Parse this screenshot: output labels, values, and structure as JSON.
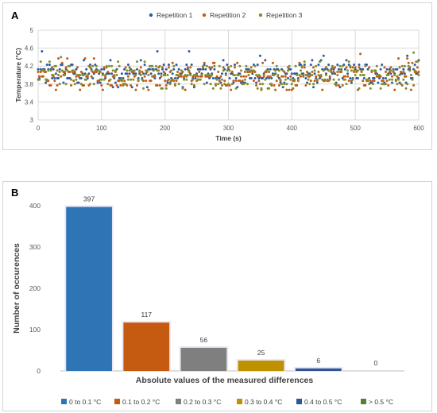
{
  "chart_data": [
    {
      "panel_label": "A",
      "type": "scatter",
      "xlabel": "Time (s)",
      "ylabel": "Temperature (°C)",
      "xlim": [
        0,
        600
      ],
      "ylim": [
        3,
        5
      ],
      "xticks": [
        "0",
        "100",
        "200",
        "300",
        "400",
        "500",
        "600"
      ],
      "yticks": [
        "3",
        "3.4",
        "3.8",
        "4.2",
        "4.6",
        "5"
      ],
      "grid": true,
      "legend_position": "top",
      "series": [
        {
          "name": "Repetition 1",
          "color": "#2e5c9e",
          "x_step": 2,
          "levels": [
            3.73,
            3.83,
            3.93,
            4.03,
            4.13,
            4.23,
            4.33,
            4.43,
            4.53
          ]
        },
        {
          "name": "Repetition 2",
          "color": "#c55a11",
          "x_step": 2,
          "levels": [
            3.67,
            3.77,
            3.87,
            3.97,
            4.07,
            4.17,
            4.27,
            4.37,
            4.47
          ]
        },
        {
          "name": "Repetition 3",
          "color": "#7f8f2e",
          "x_step": 2,
          "levels": [
            3.7,
            3.8,
            3.9,
            4.0,
            4.1,
            4.2,
            4.3,
            4.4,
            4.5
          ]
        }
      ]
    },
    {
      "panel_label": "B",
      "type": "bar",
      "xlabel": "Absolute values of the measured differences",
      "ylabel": "Number of occurences",
      "ylim": [
        0,
        400
      ],
      "yticks": [
        "0",
        "100",
        "200",
        "300",
        "400"
      ],
      "grid": false,
      "legend_position": "bottom",
      "categories": [
        "0 to 0.1 °C",
        "0.1 to 0.2 °C",
        "0.2 to 0.3 °C",
        "0.3 to 0.4 °C",
        "0.4 to 0.5 °C",
        "> 0.5 °C"
      ],
      "values": [
        397,
        117,
        56,
        25,
        6,
        0
      ],
      "colors": [
        "#2e75b6",
        "#c55a11",
        "#7f7f7f",
        "#bf9000",
        "#2f5597",
        "#548235"
      ]
    }
  ]
}
